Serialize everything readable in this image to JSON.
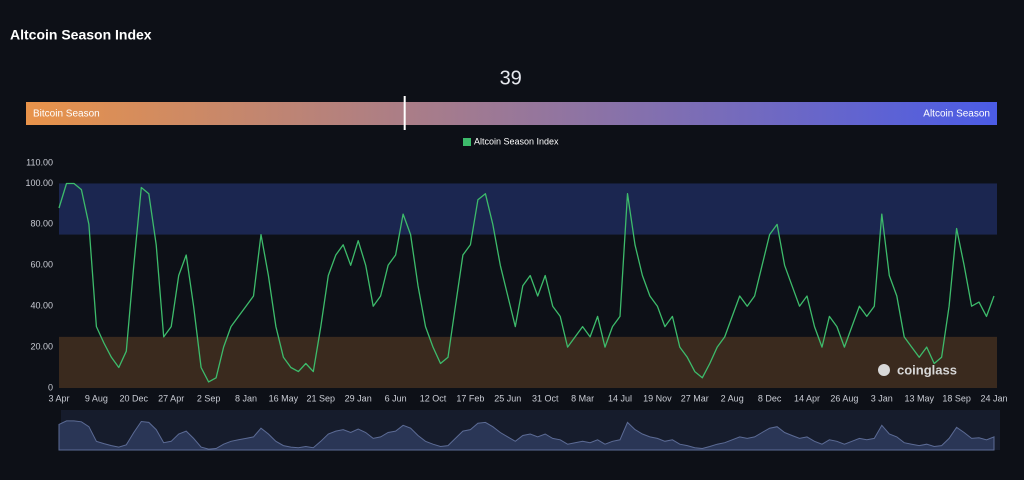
{
  "chart_data": {
    "type": "line",
    "title": "Altcoin Season Index",
    "gauge": {
      "value": 39,
      "range": [
        0,
        100
      ],
      "left_label": "Bitcoin Season",
      "right_label": "Altcoin Season",
      "colors": [
        "#e8934a",
        "#4b5ce6"
      ]
    },
    "watermark": "coinglass",
    "categories": [
      "3 Apr",
      null,
      null,
      null,
      null,
      "9 Aug",
      null,
      null,
      null,
      null,
      "20 Dec",
      null,
      null,
      null,
      null,
      "27 Apr",
      null,
      null,
      null,
      null,
      "2 Sep",
      null,
      null,
      null,
      null,
      "8 Jan",
      null,
      null,
      null,
      null,
      "16 May",
      null,
      null,
      null,
      null,
      "21 Sep",
      null,
      null,
      null,
      null,
      "29 Jan",
      null,
      null,
      null,
      null,
      "6 Jun",
      null,
      null,
      null,
      null,
      "12 Oct",
      null,
      null,
      null,
      null,
      "17 Feb",
      null,
      null,
      null,
      null,
      "25 Jun",
      null,
      null,
      null,
      null,
      "31 Oct",
      null,
      null,
      null,
      null,
      "8 Mar",
      null,
      null,
      null,
      null,
      "14 Jul",
      null,
      null,
      null,
      null,
      "19 Nov",
      null,
      null,
      null,
      null,
      "27 Mar",
      null,
      null,
      null,
      null,
      "2 Aug",
      null,
      null,
      null,
      null,
      "8 Dec",
      null,
      null,
      null,
      null,
      "14 Apr",
      null,
      null,
      null,
      null,
      "26 Aug",
      null,
      null,
      null,
      null,
      "3 Jan",
      null,
      null,
      null,
      null,
      "13 May",
      null,
      null,
      null,
      null,
      "18 Sep",
      null,
      null,
      null,
      null,
      "24 Jan"
    ],
    "series": [
      {
        "name": "Altcoin Season Index",
        "color": "#3dbb6b",
        "values": [
          88,
          100,
          100,
          97,
          80,
          30,
          22,
          15,
          10,
          18,
          60,
          98,
          95,
          70,
          25,
          30,
          55,
          65,
          40,
          10,
          3,
          5,
          20,
          30,
          35,
          40,
          45,
          75,
          55,
          30,
          15,
          10,
          8,
          12,
          8,
          30,
          55,
          65,
          70,
          60,
          72,
          60,
          40,
          45,
          60,
          65,
          85,
          75,
          50,
          30,
          20,
          12,
          15,
          40,
          65,
          70,
          92,
          95,
          80,
          60,
          45,
          30,
          50,
          55,
          45,
          55,
          40,
          35,
          20,
          25,
          30,
          25,
          35,
          20,
          30,
          35,
          95,
          70,
          55,
          45,
          40,
          30,
          35,
          20,
          15,
          8,
          5,
          12,
          20,
          25,
          35,
          45,
          40,
          45,
          60,
          75,
          80,
          60,
          50,
          40,
          45,
          30,
          20,
          35,
          30,
          20,
          30,
          40,
          35,
          40,
          85,
          55,
          45,
          25,
          20,
          15,
          20,
          12,
          15,
          40,
          78,
          60,
          40,
          42,
          35,
          45
        ]
      }
    ],
    "ylim": [
      0,
      110
    ],
    "yticks": [
      0,
      {
        "value": 20,
        "label": "20.00"
      },
      {
        "value": 40,
        "label": "40.00"
      },
      {
        "value": 60,
        "label": "60.00"
      },
      {
        "value": 80,
        "label": "80.00"
      },
      {
        "value": 100,
        "label": "100.00"
      },
      {
        "value": 110,
        "label": "110.00"
      }
    ],
    "bands": [
      {
        "from": 75,
        "to": 100,
        "color": "#1b2650"
      },
      {
        "from": 0,
        "to": 25,
        "color": "#3a2a1e"
      }
    ]
  }
}
